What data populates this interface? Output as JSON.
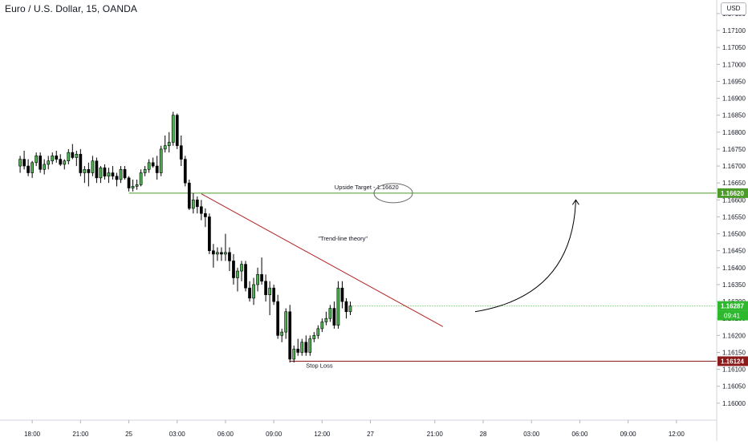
{
  "header": {
    "title": "Euro / U.S. Dollar, 15, OANDA",
    "currency": "USD"
  },
  "chart_data": {
    "type": "candlestick",
    "y_ticks": [
      "1.17150",
      "1.17100",
      "1.17050",
      "1.17000",
      "1.16950",
      "1.16900",
      "1.16850",
      "1.16800",
      "1.16750",
      "1.16700",
      "1.16650",
      "1.16600",
      "1.16550",
      "1.16500",
      "1.16450",
      "1.16400",
      "1.16350",
      "1.16300",
      "1.16250",
      "1.16200",
      "1.16150",
      "1.16100",
      "1.16050",
      "1.16000"
    ],
    "ylim": [
      1.1595,
      1.1719
    ],
    "x_ticks": [
      "18:00",
      "21:00",
      "25",
      "03:00",
      "06:00",
      "09:00",
      "12:00",
      "27",
      "21:00",
      "28",
      "03:00",
      "06:00",
      "09:00",
      "12:00"
    ],
    "x_tick_bars": [
      3,
      15,
      27,
      39,
      51,
      63,
      75,
      87,
      103,
      115,
      127,
      139,
      151,
      163
    ],
    "xlim": [
      -5,
      173
    ],
    "candles": [
      [
        1.167,
        1.1673,
        1.1668,
        1.1672
      ],
      [
        1.1672,
        1.16745,
        1.1669,
        1.167
      ],
      [
        1.167,
        1.1672,
        1.1667,
        1.1668
      ],
      [
        1.1668,
        1.16715,
        1.16665,
        1.1671
      ],
      [
        1.1671,
        1.1674,
        1.167,
        1.1673
      ],
      [
        1.1673,
        1.1674,
        1.1668,
        1.1669
      ],
      [
        1.1669,
        1.1672,
        1.16675,
        1.16705
      ],
      [
        1.16705,
        1.1673,
        1.1669,
        1.16715
      ],
      [
        1.16715,
        1.1674,
        1.16705,
        1.1673
      ],
      [
        1.1673,
        1.16745,
        1.1671,
        1.1672
      ],
      [
        1.1672,
        1.16735,
        1.167,
        1.16705
      ],
      [
        1.16705,
        1.1672,
        1.1669,
        1.16715
      ],
      [
        1.16715,
        1.1675,
        1.16705,
        1.1674
      ],
      [
        1.1674,
        1.16765,
        1.1672,
        1.16725
      ],
      [
        1.16725,
        1.16745,
        1.167,
        1.16735
      ],
      [
        1.16735,
        1.1675,
        1.1667,
        1.1668
      ],
      [
        1.1668,
        1.167,
        1.1665,
        1.1669
      ],
      [
        1.1669,
        1.1671,
        1.1664,
        1.1668
      ],
      [
        1.1668,
        1.1673,
        1.1667,
        1.16715
      ],
      [
        1.16715,
        1.16725,
        1.1665,
        1.16665
      ],
      [
        1.16665,
        1.167,
        1.1665,
        1.16695
      ],
      [
        1.16695,
        1.16705,
        1.1666,
        1.1667
      ],
      [
        1.1667,
        1.16695,
        1.1665,
        1.1668
      ],
      [
        1.1668,
        1.167,
        1.1666,
        1.1667
      ],
      [
        1.1667,
        1.1668,
        1.1664,
        1.1666
      ],
      [
        1.1666,
        1.167,
        1.1665,
        1.1669
      ],
      [
        1.1669,
        1.167,
        1.1666,
        1.16665
      ],
      [
        1.16665,
        1.1667,
        1.16625,
        1.16635
      ],
      [
        1.16635,
        1.1666,
        1.16625,
        1.1664
      ],
      [
        1.1664,
        1.1666,
        1.1663,
        1.16645
      ],
      [
        1.16645,
        1.1669,
        1.1664,
        1.1668
      ],
      [
        1.1668,
        1.167,
        1.1667,
        1.1669
      ],
      [
        1.1669,
        1.1672,
        1.1668,
        1.1671
      ],
      [
        1.1671,
        1.16725,
        1.16695,
        1.167
      ],
      [
        1.167,
        1.1673,
        1.1666,
        1.1668
      ],
      [
        1.1668,
        1.1676,
        1.1667,
        1.1675
      ],
      [
        1.1675,
        1.1679,
        1.1674,
        1.1676
      ],
      [
        1.1676,
        1.168,
        1.1674,
        1.1677
      ],
      [
        1.1677,
        1.1686,
        1.1676,
        1.1685
      ],
      [
        1.1685,
        1.16855,
        1.1675,
        1.1676
      ],
      [
        1.1676,
        1.1679,
        1.167,
        1.1672
      ],
      [
        1.1672,
        1.1673,
        1.1664,
        1.1665
      ],
      [
        1.1665,
        1.1666,
        1.1657,
        1.16575
      ],
      [
        1.16575,
        1.1662,
        1.1656,
        1.166
      ],
      [
        1.166,
        1.1661,
        1.1656,
        1.1658
      ],
      [
        1.1658,
        1.166,
        1.1654,
        1.1656
      ],
      [
        1.1656,
        1.16575,
        1.1652,
        1.1655
      ],
      [
        1.1655,
        1.1656,
        1.1644,
        1.1645
      ],
      [
        1.1645,
        1.1647,
        1.164,
        1.1644
      ],
      [
        1.1644,
        1.1646,
        1.1642,
        1.16445
      ],
      [
        1.16445,
        1.1646,
        1.1642,
        1.1644
      ],
      [
        1.1644,
        1.165,
        1.1642,
        1.16445
      ],
      [
        1.16445,
        1.1646,
        1.1639,
        1.1642
      ],
      [
        1.1642,
        1.1644,
        1.1635,
        1.1637
      ],
      [
        1.1637,
        1.164,
        1.1633,
        1.1639
      ],
      [
        1.1639,
        1.1642,
        1.1636,
        1.1641
      ],
      [
        1.1641,
        1.1642,
        1.1633,
        1.1634
      ],
      [
        1.1634,
        1.1636,
        1.163,
        1.1631
      ],
      [
        1.1631,
        1.1637,
        1.1629,
        1.1635
      ],
      [
        1.1635,
        1.164,
        1.1633,
        1.1638
      ],
      [
        1.1638,
        1.1643,
        1.1635,
        1.1636
      ],
      [
        1.1636,
        1.1638,
        1.163,
        1.1632
      ],
      [
        1.1632,
        1.1636,
        1.1626,
        1.1634
      ],
      [
        1.1634,
        1.1635,
        1.1629,
        1.163
      ],
      [
        1.163,
        1.1632,
        1.1619,
        1.162
      ],
      [
        1.162,
        1.1622,
        1.1618,
        1.1621
      ],
      [
        1.1621,
        1.1628,
        1.1619,
        1.1627
      ],
      [
        1.1627,
        1.1629,
        1.1612,
        1.1613
      ],
      [
        1.1613,
        1.1617,
        1.1612,
        1.1616
      ],
      [
        1.1616,
        1.1619,
        1.1614,
        1.1615
      ],
      [
        1.1615,
        1.1619,
        1.1614,
        1.1618
      ],
      [
        1.1618,
        1.162,
        1.1614,
        1.1615
      ],
      [
        1.1615,
        1.162,
        1.1614,
        1.1619
      ],
      [
        1.1619,
        1.1621,
        1.1618,
        1.162
      ],
      [
        1.162,
        1.1623,
        1.1619,
        1.1622
      ],
      [
        1.1622,
        1.1625,
        1.1621,
        1.1624
      ],
      [
        1.1624,
        1.1627,
        1.1623,
        1.1625
      ],
      [
        1.1625,
        1.1629,
        1.1624,
        1.1628
      ],
      [
        1.1628,
        1.163,
        1.1622,
        1.1623
      ],
      [
        1.1623,
        1.1636,
        1.1622,
        1.1634
      ],
      [
        1.1634,
        1.1636,
        1.1628,
        1.163
      ],
      [
        1.163,
        1.1631,
        1.1625,
        1.1627
      ],
      [
        1.1627,
        1.163,
        1.1626,
        1.16287
      ]
    ],
    "annotations": {
      "upside_target_label": "Upside Target - 1.16620",
      "upside_target_price": 1.1662,
      "stop_loss_label": "Stop Loss",
      "stop_loss_price": 1.16124,
      "trendline_label": "\"Trend-line theory\""
    },
    "price_tags": {
      "target": "1.16620",
      "stop": "1.16124",
      "current": "1.16287",
      "countdown": "09:41"
    },
    "colors": {
      "up": "#4caf50",
      "down": "#000000",
      "target_line": "#4c9a2a",
      "stop_line": "#8b1a1a",
      "trendline": "#b22222",
      "current_tag": "#2eb82e"
    }
  }
}
